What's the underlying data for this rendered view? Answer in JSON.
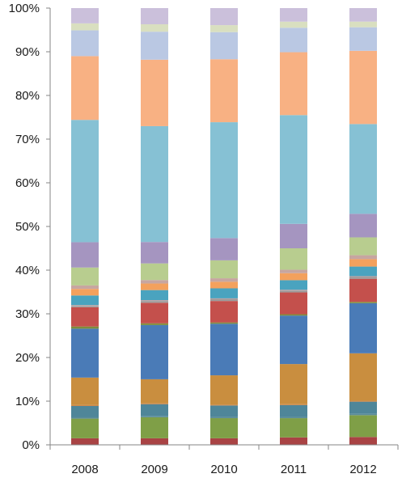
{
  "chart_data": {
    "type": "bar",
    "stacked": "percent",
    "title": "",
    "xlabel": "",
    "ylabel": "",
    "ylim": [
      0,
      100
    ],
    "yticks": [
      "0%",
      "10%",
      "20%",
      "30%",
      "40%",
      "50%",
      "60%",
      "70%",
      "80%",
      "90%",
      "100%"
    ],
    "categories": [
      "2008",
      "2009",
      "2010",
      "2011",
      "2012"
    ],
    "grid": false,
    "legend": "none",
    "segment_colors": [
      "#a94344",
      "#7f9f47",
      "#5c8c9a",
      "#4f8699",
      "#cc8240",
      "#c98e3f",
      "#4a7bb7",
      "#7f8c3a",
      "#c4504c",
      "#9b9b9b",
      "#c2a0a0",
      "#4aa3bf",
      "#f3a15d",
      "#c7a6a0",
      "#b8cd8f",
      "#a595c0",
      "#86c1d4",
      "#f8b183",
      "#bac8e3",
      "#d9dfc0",
      "#cbc0db"
    ],
    "series": [
      {
        "values": [
          1.5,
          1.5,
          1.5,
          1.7,
          1.8
        ]
      },
      {
        "values": [
          4.5,
          4.8,
          4.6,
          4.4,
          5.0
        ]
      },
      {
        "values": [
          0.3,
          0.3,
          0.3,
          0.3,
          0.3
        ]
      },
      {
        "values": [
          2.6,
          2.7,
          2.6,
          2.7,
          2.8
        ]
      },
      {
        "values": [
          0.2,
          0.2,
          0.2,
          0.2,
          0.2
        ]
      },
      {
        "values": [
          6.3,
          5.5,
          6.7,
          9.2,
          10.9
        ]
      },
      {
        "values": [
          11.2,
          12.4,
          11.8,
          11.1,
          11.5
        ]
      },
      {
        "values": [
          0.5,
          0.4,
          0.3,
          0.3,
          0.3
        ]
      },
      {
        "values": [
          4.4,
          4.7,
          4.9,
          5.0,
          5.3
        ]
      },
      {
        "values": [
          0.3,
          0.4,
          0.4,
          0.4,
          0.4
        ]
      },
      {
        "values": [
          0.2,
          0.2,
          0.2,
          0.2,
          0.2
        ]
      },
      {
        "values": [
          2.2,
          2.3,
          2.3,
          2.2,
          2.2
        ]
      },
      {
        "values": [
          1.5,
          1.5,
          1.5,
          1.6,
          1.7
        ]
      },
      {
        "values": [
          0.8,
          0.8,
          0.8,
          0.8,
          0.9
        ]
      },
      {
        "values": [
          4.1,
          3.8,
          4.1,
          4.9,
          4.1
        ]
      },
      {
        "values": [
          5.8,
          4.9,
          5.1,
          5.6,
          5.4
        ]
      },
      {
        "values": [
          28.0,
          26.5,
          26.5,
          24.9,
          20.6
        ]
      },
      {
        "values": [
          14.6,
          15.2,
          14.4,
          14.4,
          16.8
        ]
      },
      {
        "values": [
          5.9,
          6.4,
          6.2,
          5.6,
          5.4
        ]
      },
      {
        "values": [
          1.6,
          1.7,
          1.6,
          1.4,
          1.3
        ]
      },
      {
        "values": [
          3.5,
          3.7,
          3.9,
          3.1,
          3.1
        ]
      }
    ]
  }
}
